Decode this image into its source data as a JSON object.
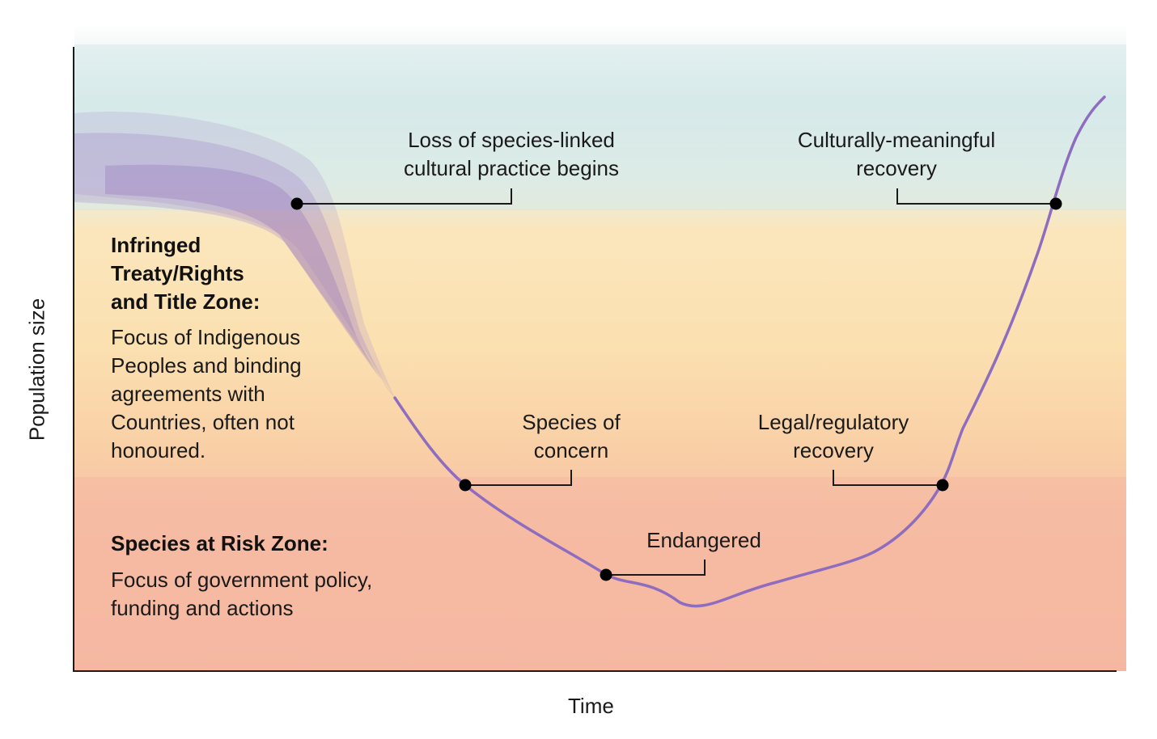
{
  "axes": {
    "x_label": "Time",
    "y_label": "Population size"
  },
  "zones": {
    "upper": {
      "title": "Infringed\nTreaty/Rights\nand Title Zone:",
      "description": "Focus of Indigenous\nPeoples and binding\nagreements with\nCountries, often not\nhonoured."
    },
    "lower": {
      "title": "Species at Risk Zone:",
      "description": "Focus of government policy,\nfunding and actions"
    }
  },
  "milestones": [
    {
      "label": "Loss of species-linked\ncultural practice begins"
    },
    {
      "label": "Species of\nconcern"
    },
    {
      "label": "Endangered"
    },
    {
      "label": "Legal/regulatory\nrecovery"
    },
    {
      "label": "Culturally-meaningful\nrecovery"
    }
  ],
  "colors": {
    "curve": "#8e6cbf",
    "band_cultural": "#d7ebea",
    "band_treaty": "#fbe3b6",
    "band_risk": "#f6bba4",
    "marker": "#000000"
  }
}
